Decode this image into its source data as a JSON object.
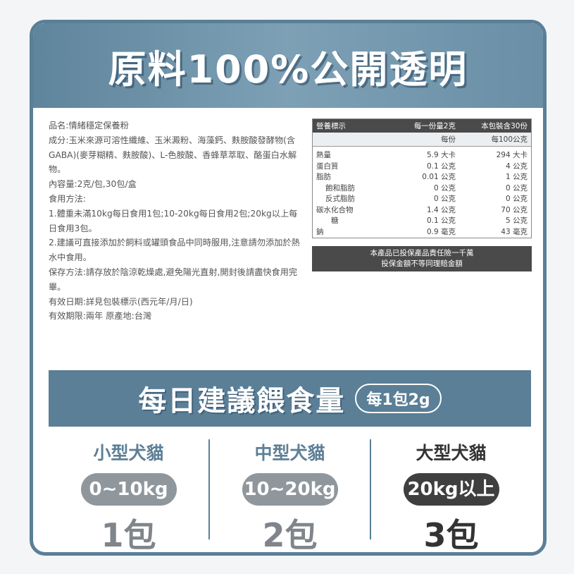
{
  "hero": {
    "title": "原料100%公開透明"
  },
  "info": {
    "lines": [
      "品名:情緒穩定保養粉",
      "成分:玉米來源可溶性纖維、玉米澱粉、海藻鈣、麩胺酸發酵物(含GABA)(麥芽糊精、麩胺酸)、L-色胺酸、香蜂草萃取、酪蛋白水解物。",
      "內容量:2克/包,30包/盒",
      "食用方法:",
      "1.體重未滿10kg每日食用1包;10-20kg每日食用2包;20kg以上每日食用3包。",
      "2.建議可直接添加於飼料或罐頭食品中同時服用,注意請勿添加於熱水中食用。",
      "保存方法:請存放於陰涼乾燥處,避免陽光直射,開封後請盡快食用完畢。",
      "有效日期:詳見包裝標示(西元年/月/日)",
      "有效期限:兩年 原產地:台灣"
    ]
  },
  "nutrition": {
    "header": {
      "title": "營養標示",
      "per_serving": "每一份量2克",
      "servings": "本包裝含30份"
    },
    "subheader": {
      "per": "每份",
      "per100": "每100公克"
    },
    "rows": [
      {
        "name": "熱量",
        "serving": "5.9 大卡",
        "per100": "294 大卡"
      },
      {
        "name": "蛋白質",
        "serving": "0.1 公克",
        "per100": "4 公克"
      },
      {
        "name": "脂肪",
        "serving": "0.01 公克",
        "per100": "1 公克"
      },
      {
        "name": "飽和脂肪",
        "serving": "0 公克",
        "per100": "0 公克"
      },
      {
        "name": "反式脂肪",
        "serving": "0 公克",
        "per100": "0 公克"
      },
      {
        "name": "碳水化合物",
        "serving": "1.4 公克",
        "per100": "70 公克"
      },
      {
        "name": "糖",
        "serving": "0.1 公克",
        "per100": "5 公克"
      },
      {
        "name": "鈉",
        "serving": "0.9 毫克",
        "per100": "43 毫克"
      }
    ],
    "insurance": [
      "本產品已投保產品責任險一千萬",
      "投保金額不等同理賠金額"
    ]
  },
  "daily": {
    "title": "每日建議餵食量",
    "pill": "每1包2g"
  },
  "tiers": [
    {
      "label": "小型犬貓",
      "range": "0~10kg",
      "amount": "1包"
    },
    {
      "label": "中型犬貓",
      "range": "10~20kg",
      "amount": "2包"
    },
    {
      "label": "大型犬貓",
      "range": "20kg以上",
      "amount": "3包"
    }
  ],
  "colors": {
    "primary": "#5a7f97",
    "dark": "#3f3f3f",
    "gray_pill": "#8f979d"
  }
}
